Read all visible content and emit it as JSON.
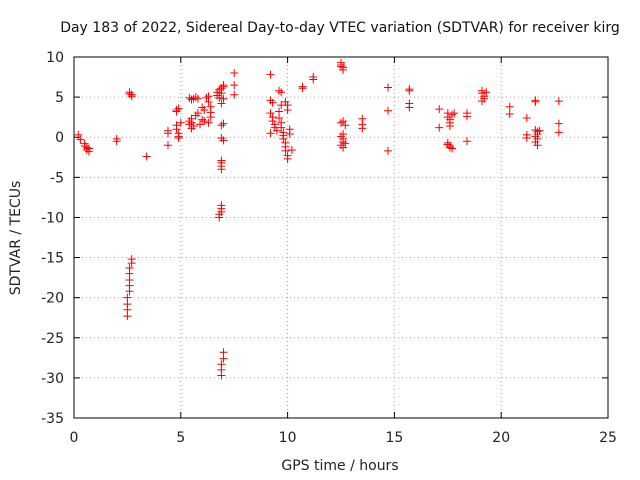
{
  "chart_data": {
    "type": "scatter",
    "title": "Day 183 of 2022, Sidereal Day-to-day VTEC variation (SDTVAR) for receiver kirg",
    "xlabel": "GPS time / hours",
    "ylabel": "SDTVAR / TECUs",
    "xlim": [
      0,
      25
    ],
    "ylim": [
      -35,
      10
    ],
    "xticks": [
      0,
      5,
      10,
      15,
      20,
      25
    ],
    "yticks": [
      10,
      5,
      0,
      -5,
      -10,
      -15,
      -20,
      -25,
      -30,
      -35
    ],
    "grid": true,
    "marker": "+",
    "color": "#ff0000",
    "series": [
      {
        "name": "SDTVAR",
        "points": [
          [
            0.2,
            0.3
          ],
          [
            0.3,
            -0.3
          ],
          [
            0.5,
            -0.8
          ],
          [
            0.5,
            -1.1
          ],
          [
            0.6,
            -1.3
          ],
          [
            0.6,
            -1.6
          ],
          [
            0.7,
            -1.8
          ],
          [
            0.7,
            -1.4
          ],
          [
            2.0,
            -0.2
          ],
          [
            2.0,
            -0.5
          ],
          [
            2.6,
            5.6
          ],
          [
            2.6,
            5.4
          ],
          [
            2.7,
            5.3
          ],
          [
            2.7,
            5.1
          ],
          [
            2.5,
            -22.3
          ],
          [
            2.5,
            -21.5
          ],
          [
            2.5,
            -20.8
          ],
          [
            2.5,
            -20.0
          ],
          [
            2.6,
            -19.2
          ],
          [
            2.6,
            -18.5
          ],
          [
            2.6,
            -17.8
          ],
          [
            2.6,
            -17.0
          ],
          [
            2.6,
            -16.3
          ],
          [
            2.7,
            -15.7
          ],
          [
            2.7,
            -15.2
          ],
          [
            3.4,
            -2.4
          ],
          [
            4.4,
            0.8
          ],
          [
            4.4,
            0.5
          ],
          [
            4.4,
            -1.0
          ],
          [
            4.8,
            3.2
          ],
          [
            4.8,
            3.4
          ],
          [
            4.9,
            3.6
          ],
          [
            4.8,
            1.5
          ],
          [
            4.8,
            1.0
          ],
          [
            4.9,
            0.5
          ],
          [
            4.9,
            0.1
          ],
          [
            4.9,
            -0.1
          ],
          [
            5.0,
            1.8
          ],
          [
            5.4,
            4.9
          ],
          [
            5.5,
            4.7
          ],
          [
            5.6,
            4.8
          ],
          [
            5.7,
            5.0
          ],
          [
            5.8,
            4.8
          ],
          [
            5.4,
            2.0
          ],
          [
            5.5,
            2.3
          ],
          [
            5.5,
            1.8
          ],
          [
            5.6,
            1.4
          ],
          [
            5.5,
            1.1
          ],
          [
            5.7,
            2.7
          ],
          [
            5.8,
            3.0
          ],
          [
            5.4,
            1.6
          ],
          [
            6.0,
            2.2
          ],
          [
            6.1,
            2.0
          ],
          [
            6.1,
            3.4
          ],
          [
            6.0,
            3.7
          ],
          [
            6.2,
            4.9
          ],
          [
            6.3,
            5.1
          ],
          [
            6.3,
            4.4
          ],
          [
            6.4,
            3.8
          ],
          [
            6.4,
            3.1
          ],
          [
            6.4,
            2.5
          ],
          [
            6.3,
            1.8
          ],
          [
            5.9,
            1.6
          ],
          [
            6.7,
            5.6
          ],
          [
            6.8,
            5.9
          ],
          [
            6.9,
            6.1
          ],
          [
            7.0,
            6.3
          ],
          [
            7.0,
            6.5
          ],
          [
            6.7,
            5.2
          ],
          [
            6.8,
            4.9
          ],
          [
            6.9,
            5.5
          ],
          [
            7.0,
            4.8
          ],
          [
            6.9,
            4.2
          ],
          [
            7.0,
            1.7
          ],
          [
            6.9,
            1.5
          ],
          [
            6.9,
            -0.1
          ],
          [
            7.0,
            -0.4
          ],
          [
            6.9,
            -2.9
          ],
          [
            6.9,
            -3.2
          ],
          [
            6.9,
            -3.6
          ],
          [
            6.9,
            -4.0
          ],
          [
            6.9,
            -8.5
          ],
          [
            6.9,
            -8.9
          ],
          [
            6.9,
            -9.3
          ],
          [
            6.8,
            -9.6
          ],
          [
            6.8,
            -10.0
          ],
          [
            7.0,
            -26.8
          ],
          [
            7.0,
            -27.6
          ],
          [
            6.9,
            -28.3
          ],
          [
            6.9,
            -29.0
          ],
          [
            6.9,
            -29.7
          ],
          [
            7.5,
            8.0
          ],
          [
            7.5,
            6.5
          ],
          [
            7.5,
            5.3
          ],
          [
            9.2,
            7.8
          ],
          [
            9.2,
            4.6
          ],
          [
            9.3,
            4.3
          ],
          [
            9.2,
            3.0
          ],
          [
            9.3,
            2.5
          ],
          [
            9.3,
            2.0
          ],
          [
            9.4,
            1.6
          ],
          [
            9.4,
            1.2
          ],
          [
            9.5,
            0.8
          ],
          [
            9.2,
            0.5
          ],
          [
            9.6,
            5.8
          ],
          [
            9.7,
            5.6
          ],
          [
            9.7,
            4.0
          ],
          [
            9.6,
            3.2
          ],
          [
            9.6,
            2.4
          ],
          [
            9.7,
            1.8
          ],
          [
            9.7,
            1.2
          ],
          [
            9.8,
            0.6
          ],
          [
            9.8,
            0.2
          ],
          [
            9.8,
            -0.2
          ],
          [
            9.9,
            -0.7
          ],
          [
            9.9,
            -1.2
          ],
          [
            9.9,
            -1.7
          ],
          [
            10.0,
            -2.3
          ],
          [
            10.0,
            -2.7
          ],
          [
            9.9,
            4.4
          ],
          [
            10.0,
            4.0
          ],
          [
            10.0,
            3.4
          ],
          [
            10.1,
            1.0
          ],
          [
            10.1,
            0.4
          ],
          [
            10.2,
            -1.6
          ],
          [
            10.7,
            6.3
          ],
          [
            10.7,
            6.1
          ],
          [
            11.2,
            7.5
          ],
          [
            11.2,
            7.2
          ],
          [
            12.5,
            9.3
          ],
          [
            12.5,
            9.0
          ],
          [
            12.6,
            8.7
          ],
          [
            12.6,
            8.4
          ],
          [
            12.5,
            8.8
          ],
          [
            12.6,
            2.0
          ],
          [
            12.5,
            1.8
          ],
          [
            12.6,
            0.4
          ],
          [
            12.5,
            0.1
          ],
          [
            12.6,
            -0.2
          ],
          [
            12.6,
            -0.6
          ],
          [
            12.5,
            -1.0
          ],
          [
            12.6,
            -1.3
          ],
          [
            12.7,
            -0.8
          ],
          [
            12.7,
            1.5
          ],
          [
            13.5,
            2.3
          ],
          [
            13.5,
            1.6
          ],
          [
            13.5,
            1.1
          ],
          [
            14.7,
            6.2
          ],
          [
            14.7,
            3.3
          ],
          [
            14.7,
            -1.7
          ],
          [
            15.7,
            6.0
          ],
          [
            15.7,
            5.8
          ],
          [
            15.7,
            4.2
          ],
          [
            15.7,
            3.7
          ],
          [
            17.1,
            3.5
          ],
          [
            17.1,
            1.2
          ],
          [
            17.5,
            3.0
          ],
          [
            17.5,
            2.5
          ],
          [
            17.6,
            2.2
          ],
          [
            17.6,
            1.8
          ],
          [
            17.6,
            1.4
          ],
          [
            17.7,
            2.8
          ],
          [
            17.8,
            3.0
          ],
          [
            17.5,
            -0.7
          ],
          [
            17.5,
            -0.9
          ],
          [
            17.6,
            -1.1
          ],
          [
            17.6,
            -1.3
          ],
          [
            17.7,
            -1.4
          ],
          [
            18.4,
            3.0
          ],
          [
            18.4,
            2.6
          ],
          [
            18.4,
            -0.5
          ],
          [
            19.1,
            5.8
          ],
          [
            19.1,
            5.5
          ],
          [
            19.2,
            5.1
          ],
          [
            19.2,
            4.8
          ],
          [
            19.1,
            4.5
          ],
          [
            19.3,
            5.6
          ],
          [
            20.4,
            3.8
          ],
          [
            20.4,
            2.9
          ],
          [
            21.2,
            2.4
          ],
          [
            21.2,
            0.3
          ],
          [
            21.2,
            -0.1
          ],
          [
            21.6,
            4.6
          ],
          [
            21.6,
            4.4
          ],
          [
            21.6,
            0.9
          ],
          [
            21.7,
            0.7
          ],
          [
            21.7,
            0.4
          ],
          [
            21.6,
            0.1
          ],
          [
            21.7,
            -0.2
          ],
          [
            21.6,
            -0.6
          ],
          [
            21.7,
            -1.0
          ],
          [
            21.8,
            0.8
          ],
          [
            22.7,
            4.5
          ],
          [
            22.7,
            1.7
          ],
          [
            22.7,
            0.6
          ]
        ]
      }
    ]
  }
}
